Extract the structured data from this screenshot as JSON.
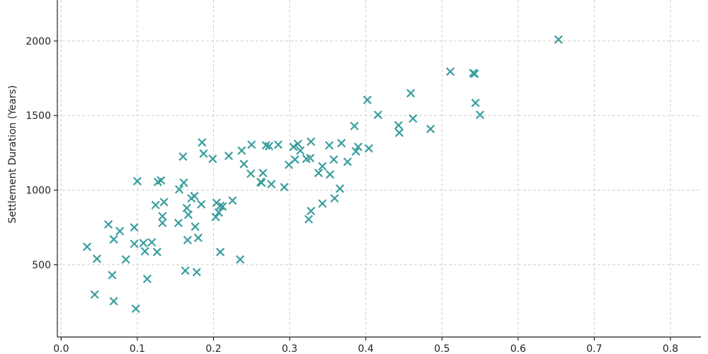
{
  "chart_data": {
    "type": "scatter",
    "title": "",
    "xlabel": "",
    "ylabel": "Settlement Duration (Years)",
    "xlim": [
      -0.005,
      0.84
    ],
    "ylim": [
      15,
      2275
    ],
    "xticks": [
      0.0,
      0.1,
      0.2,
      0.3,
      0.4,
      0.5,
      0.6,
      0.7,
      0.8
    ],
    "xtick_labels": [
      "0.0",
      "0.1",
      "0.2",
      "0.3",
      "0.4",
      "0.5",
      "0.6",
      "0.7",
      "0.8"
    ],
    "yticks": [
      500,
      1000,
      1500,
      2000
    ],
    "ytick_labels": [
      "500",
      "1000",
      "1500",
      "2000"
    ],
    "grid": true,
    "legend": "none",
    "marker": "x",
    "color": "#3a9e9e",
    "points": [
      [
        0.034,
        620
      ],
      [
        0.044,
        300
      ],
      [
        0.047,
        540
      ],
      [
        0.062,
        770
      ],
      [
        0.067,
        430
      ],
      [
        0.069,
        670
      ],
      [
        0.069,
        255
      ],
      [
        0.077,
        725
      ],
      [
        0.085,
        535
      ],
      [
        0.096,
        640
      ],
      [
        0.096,
        750
      ],
      [
        0.098,
        205
      ],
      [
        0.1,
        1060
      ],
      [
        0.108,
        645
      ],
      [
        0.11,
        590
      ],
      [
        0.113,
        405
      ],
      [
        0.119,
        650
      ],
      [
        0.124,
        900
      ],
      [
        0.126,
        585
      ],
      [
        0.127,
        1055
      ],
      [
        0.131,
        1065
      ],
      [
        0.133,
        780
      ],
      [
        0.133,
        825
      ],
      [
        0.135,
        920
      ],
      [
        0.154,
        780
      ],
      [
        0.155,
        1005
      ],
      [
        0.161,
        1050
      ],
      [
        0.16,
        1225
      ],
      [
        0.163,
        460
      ],
      [
        0.165,
        880
      ],
      [
        0.166,
        665
      ],
      [
        0.167,
        835
      ],
      [
        0.171,
        945
      ],
      [
        0.175,
        960
      ],
      [
        0.176,
        755
      ],
      [
        0.178,
        450
      ],
      [
        0.18,
        680
      ],
      [
        0.184,
        905
      ],
      [
        0.185,
        1320
      ],
      [
        0.187,
        1245
      ],
      [
        0.199,
        1210
      ],
      [
        0.203,
        820
      ],
      [
        0.204,
        915
      ],
      [
        0.207,
        850
      ],
      [
        0.209,
        895
      ],
      [
        0.209,
        585
      ],
      [
        0.212,
        890
      ],
      [
        0.22,
        1230
      ],
      [
        0.225,
        930
      ],
      [
        0.235,
        535
      ],
      [
        0.237,
        1265
      ],
      [
        0.24,
        1175
      ],
      [
        0.249,
        1110
      ],
      [
        0.25,
        1305
      ],
      [
        0.262,
        1055
      ],
      [
        0.263,
        1050
      ],
      [
        0.265,
        1115
      ],
      [
        0.269,
        1300
      ],
      [
        0.273,
        1295
      ],
      [
        0.276,
        1040
      ],
      [
        0.285,
        1305
      ],
      [
        0.293,
        1020
      ],
      [
        0.299,
        1170
      ],
      [
        0.305,
        1290
      ],
      [
        0.307,
        1205
      ],
      [
        0.311,
        1310
      ],
      [
        0.314,
        1265
      ],
      [
        0.322,
        1210
      ],
      [
        0.325,
        805
      ],
      [
        0.327,
        1215
      ],
      [
        0.328,
        1325
      ],
      [
        0.328,
        860
      ],
      [
        0.338,
        1115
      ],
      [
        0.343,
        1160
      ],
      [
        0.343,
        910
      ],
      [
        0.352,
        1300
      ],
      [
        0.353,
        1105
      ],
      [
        0.358,
        1205
      ],
      [
        0.359,
        945
      ],
      [
        0.366,
        1010
      ],
      [
        0.368,
        1315
      ],
      [
        0.376,
        1190
      ],
      [
        0.385,
        1430
      ],
      [
        0.387,
        1260
      ],
      [
        0.39,
        1290
      ],
      [
        0.402,
        1605
      ],
      [
        0.404,
        1280
      ],
      [
        0.416,
        1505
      ],
      [
        0.443,
        1435
      ],
      [
        0.444,
        1385
      ],
      [
        0.459,
        1650
      ],
      [
        0.462,
        1480
      ],
      [
        0.485,
        1410
      ],
      [
        0.511,
        1795
      ],
      [
        0.541,
        1785
      ],
      [
        0.543,
        1780
      ],
      [
        0.544,
        1585
      ],
      [
        0.55,
        1505
      ],
      [
        0.653,
        2010
      ]
    ]
  }
}
